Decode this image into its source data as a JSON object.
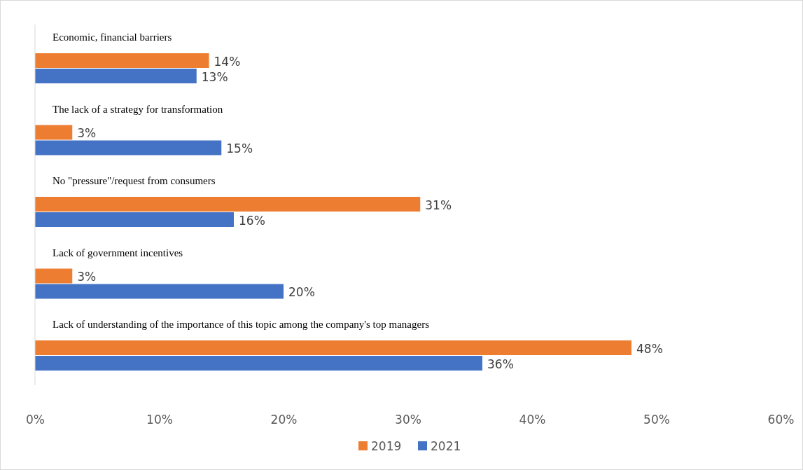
{
  "chart_data": {
    "type": "bar",
    "orientation": "horizontal",
    "categories": [
      "Economic, financial barriers",
      "The lack of a strategy for transformation",
      "No \"pressure\"/request from consumers",
      "Lack of government incentives",
      "Lack of understanding of the importance of this topic among the company's top managers"
    ],
    "series": [
      {
        "name": "2019",
        "color": "#ed7d31",
        "values": [
          14,
          3,
          31,
          3,
          48
        ],
        "value_labels": [
          "14%",
          "3%",
          "31%",
          "3%",
          "48%"
        ]
      },
      {
        "name": "2021",
        "color": "#4472c4",
        "values": [
          13,
          15,
          16,
          20,
          36
        ],
        "value_labels": [
          "13%",
          "15%",
          "16%",
          "20%",
          "36%"
        ]
      }
    ],
    "xlim": [
      0,
      60
    ],
    "xticks": [
      {
        "value": 0,
        "label": "0%"
      },
      {
        "value": 10,
        "label": "10%"
      },
      {
        "value": 20,
        "label": "20%"
      },
      {
        "value": 30,
        "label": "30%"
      },
      {
        "value": 40,
        "label": "40%"
      },
      {
        "value": 50,
        "label": "50%"
      },
      {
        "value": 60,
        "label": "60%"
      }
    ],
    "grid": false,
    "legend": "bottom"
  }
}
